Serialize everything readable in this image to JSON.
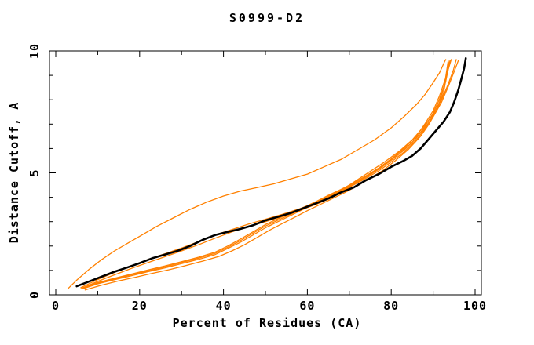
{
  "header": {
    "title": "S0999-D2"
  },
  "chart_data": {
    "type": "line",
    "title": "S0999-D2",
    "xlabel": "Percent of Residues (CA)",
    "ylabel": "Distance Cutoff, A",
    "xlim": [
      -1.5,
      101.5
    ],
    "ylim": [
      0,
      10
    ],
    "grid": false,
    "legend": "none",
    "x_ticks_major": [
      0,
      20,
      40,
      60,
      80,
      100
    ],
    "x_ticks_minor": [
      10,
      30,
      50,
      70,
      90
    ],
    "x_tick_labels": [
      "0",
      "20",
      "40",
      "60",
      "80",
      "100"
    ],
    "y_ticks_major": [
      0,
      5,
      10
    ],
    "y_ticks_minor": [
      1,
      2,
      3,
      4,
      6,
      7,
      8,
      9
    ],
    "y_tick_labels": [
      "0",
      "5",
      "10"
    ],
    "colors": {
      "orange_curves": "#ff8000",
      "black_curve": "#000000",
      "frame": "#000000"
    },
    "series": [
      {
        "name": "black-curve",
        "color": "#000000",
        "width": 2.6,
        "points": [
          [
            5,
            0.35
          ],
          [
            8,
            0.55
          ],
          [
            11,
            0.75
          ],
          [
            14,
            0.95
          ],
          [
            17,
            1.12
          ],
          [
            20,
            1.3
          ],
          [
            23,
            1.5
          ],
          [
            26,
            1.65
          ],
          [
            29,
            1.8
          ],
          [
            32,
            2.0
          ],
          [
            35,
            2.25
          ],
          [
            38,
            2.45
          ],
          [
            41,
            2.58
          ],
          [
            44,
            2.7
          ],
          [
            47,
            2.85
          ],
          [
            50,
            3.05
          ],
          [
            53,
            3.2
          ],
          [
            56,
            3.35
          ],
          [
            59,
            3.55
          ],
          [
            62,
            3.75
          ],
          [
            65,
            3.95
          ],
          [
            68,
            4.2
          ],
          [
            71,
            4.4
          ],
          [
            74,
            4.7
          ],
          [
            77,
            4.95
          ],
          [
            80,
            5.25
          ],
          [
            83,
            5.5
          ],
          [
            85,
            5.7
          ],
          [
            87,
            6.0
          ],
          [
            89,
            6.4
          ],
          [
            91,
            6.8
          ],
          [
            92.5,
            7.1
          ],
          [
            94,
            7.5
          ],
          [
            95,
            7.9
          ],
          [
            96,
            8.4
          ],
          [
            96.8,
            8.9
          ],
          [
            97.4,
            9.3
          ],
          [
            97.8,
            9.7
          ]
        ]
      },
      {
        "name": "orange-curve-1",
        "color": "#ff8000",
        "width": 1.3,
        "points": [
          [
            2.9,
            0.25
          ],
          [
            5,
            0.6
          ],
          [
            8,
            1.05
          ],
          [
            11,
            1.45
          ],
          [
            14,
            1.8
          ],
          [
            17,
            2.1
          ],
          [
            20,
            2.4
          ],
          [
            24,
            2.8
          ],
          [
            28,
            3.15
          ],
          [
            32,
            3.5
          ],
          [
            36,
            3.8
          ],
          [
            40,
            4.05
          ],
          [
            44,
            4.25
          ],
          [
            48,
            4.4
          ],
          [
            52,
            4.55
          ],
          [
            56,
            4.75
          ],
          [
            60,
            4.95
          ],
          [
            64,
            5.25
          ],
          [
            68,
            5.55
          ],
          [
            72,
            5.95
          ],
          [
            76,
            6.35
          ],
          [
            80,
            6.85
          ],
          [
            83,
            7.3
          ],
          [
            86,
            7.8
          ],
          [
            88,
            8.2
          ],
          [
            90,
            8.7
          ],
          [
            91.5,
            9.1
          ],
          [
            92.7,
            9.55
          ],
          [
            93,
            9.65
          ]
        ]
      },
      {
        "name": "orange-curve-2",
        "color": "#ff8000",
        "width": 1.3,
        "points": [
          [
            6,
            0.3
          ],
          [
            10,
            0.62
          ],
          [
            14,
            0.92
          ],
          [
            18,
            1.18
          ],
          [
            22,
            1.45
          ],
          [
            26,
            1.68
          ],
          [
            30,
            1.92
          ],
          [
            34,
            2.18
          ],
          [
            38,
            2.45
          ],
          [
            42,
            2.68
          ],
          [
            46,
            2.9
          ],
          [
            50,
            3.1
          ],
          [
            54,
            3.3
          ],
          [
            58,
            3.52
          ],
          [
            62,
            3.78
          ],
          [
            66,
            4.1
          ],
          [
            70,
            4.5
          ],
          [
            74,
            4.95
          ],
          [
            78,
            5.4
          ],
          [
            82,
            5.9
          ],
          [
            85,
            6.35
          ],
          [
            88,
            6.95
          ],
          [
            90,
            7.4
          ],
          [
            92,
            8.0
          ],
          [
            93.5,
            8.6
          ],
          [
            94.8,
            9.2
          ],
          [
            95.5,
            9.65
          ]
        ]
      },
      {
        "name": "orange-curve-3",
        "color": "#ff8000",
        "width": 1.3,
        "points": [
          [
            6,
            0.25
          ],
          [
            10,
            0.55
          ],
          [
            14,
            0.82
          ],
          [
            18,
            1.08
          ],
          [
            22,
            1.32
          ],
          [
            26,
            1.56
          ],
          [
            30,
            1.8
          ],
          [
            34,
            2.05
          ],
          [
            38,
            2.32
          ],
          [
            42,
            2.58
          ],
          [
            46,
            2.8
          ],
          [
            50,
            3.0
          ],
          [
            54,
            3.22
          ],
          [
            58,
            3.45
          ],
          [
            62,
            3.7
          ],
          [
            66,
            4.0
          ],
          [
            70,
            4.4
          ],
          [
            74,
            4.85
          ],
          [
            78,
            5.3
          ],
          [
            82,
            5.8
          ],
          [
            85,
            6.25
          ],
          [
            88,
            6.85
          ],
          [
            90,
            7.3
          ],
          [
            92,
            7.9
          ],
          [
            93.5,
            8.5
          ],
          [
            95,
            9.15
          ],
          [
            96,
            9.6
          ]
        ]
      },
      {
        "name": "orange-curve-4",
        "color": "#ff8000",
        "width": 1.3,
        "points": [
          [
            6.5,
            0.25
          ],
          [
            10,
            0.45
          ],
          [
            14,
            0.62
          ],
          [
            18,
            0.78
          ],
          [
            22,
            0.95
          ],
          [
            26,
            1.1
          ],
          [
            30,
            1.28
          ],
          [
            34,
            1.45
          ],
          [
            38,
            1.65
          ],
          [
            41,
            1.9
          ],
          [
            44,
            2.15
          ],
          [
            47,
            2.45
          ],
          [
            50,
            2.75
          ],
          [
            53,
            3.0
          ],
          [
            56,
            3.25
          ],
          [
            59,
            3.5
          ],
          [
            62,
            3.75
          ],
          [
            65,
            4.0
          ],
          [
            68,
            4.25
          ],
          [
            71,
            4.5
          ],
          [
            74,
            4.78
          ],
          [
            77,
            5.08
          ],
          [
            80,
            5.45
          ],
          [
            83,
            5.85
          ],
          [
            86,
            6.35
          ],
          [
            88,
            6.8
          ],
          [
            90,
            7.35
          ],
          [
            91.5,
            7.9
          ],
          [
            92.7,
            8.6
          ],
          [
            93.6,
            9.6
          ]
        ]
      },
      {
        "name": "orange-curve-5",
        "color": "#ff8000",
        "width": 1.3,
        "points": [
          [
            6.5,
            0.3
          ],
          [
            10,
            0.5
          ],
          [
            14,
            0.68
          ],
          [
            18,
            0.85
          ],
          [
            22,
            1.02
          ],
          [
            26,
            1.18
          ],
          [
            30,
            1.36
          ],
          [
            34,
            1.54
          ],
          [
            38,
            1.75
          ],
          [
            41,
            2.0
          ],
          [
            44,
            2.28
          ],
          [
            47,
            2.58
          ],
          [
            50,
            2.88
          ],
          [
            53,
            3.12
          ],
          [
            56,
            3.35
          ],
          [
            59,
            3.58
          ],
          [
            62,
            3.82
          ],
          [
            65,
            4.08
          ],
          [
            68,
            4.32
          ],
          [
            71,
            4.58
          ],
          [
            74,
            4.88
          ],
          [
            77,
            5.2
          ],
          [
            80,
            5.58
          ],
          [
            83,
            6.0
          ],
          [
            86,
            6.5
          ],
          [
            88,
            7.0
          ],
          [
            90,
            7.55
          ],
          [
            91.5,
            8.15
          ],
          [
            93,
            8.9
          ],
          [
            94.3,
            9.65
          ]
        ]
      },
      {
        "name": "orange-curve-6",
        "color": "#ff8000",
        "width": 1.3,
        "points": [
          [
            6.5,
            0.28
          ],
          [
            10,
            0.48
          ],
          [
            14,
            0.65
          ],
          [
            18,
            0.82
          ],
          [
            22,
            0.98
          ],
          [
            26,
            1.14
          ],
          [
            30,
            1.32
          ],
          [
            34,
            1.5
          ],
          [
            38,
            1.7
          ],
          [
            41,
            1.95
          ],
          [
            44,
            2.22
          ],
          [
            47,
            2.52
          ],
          [
            50,
            2.82
          ],
          [
            53,
            3.06
          ],
          [
            56,
            3.3
          ],
          [
            59,
            3.54
          ],
          [
            62,
            3.78
          ],
          [
            65,
            4.04
          ],
          [
            68,
            4.28
          ],
          [
            71,
            4.54
          ],
          [
            74,
            4.83
          ],
          [
            77,
            5.14
          ],
          [
            80,
            5.52
          ],
          [
            83,
            5.92
          ],
          [
            86,
            6.42
          ],
          [
            88,
            6.9
          ],
          [
            90,
            7.45
          ],
          [
            91.5,
            8.02
          ],
          [
            93,
            8.75
          ],
          [
            94,
            9.6
          ]
        ]
      },
      {
        "name": "orange-curve-7",
        "color": "#ff8000",
        "width": 1.3,
        "points": [
          [
            7,
            0.2
          ],
          [
            11,
            0.4
          ],
          [
            15,
            0.57
          ],
          [
            19,
            0.72
          ],
          [
            23,
            0.88
          ],
          [
            27,
            1.03
          ],
          [
            31,
            1.2
          ],
          [
            35,
            1.38
          ],
          [
            39,
            1.58
          ],
          [
            42,
            1.8
          ],
          [
            45,
            2.05
          ],
          [
            48,
            2.35
          ],
          [
            51,
            2.65
          ],
          [
            54,
            2.92
          ],
          [
            57,
            3.18
          ],
          [
            60,
            3.45
          ],
          [
            63,
            3.7
          ],
          [
            66,
            3.95
          ],
          [
            69,
            4.2
          ],
          [
            72,
            4.48
          ],
          [
            75,
            4.78
          ],
          [
            78,
            5.1
          ],
          [
            81,
            5.5
          ],
          [
            84,
            5.95
          ],
          [
            87,
            6.5
          ],
          [
            89,
            7.0
          ],
          [
            91,
            7.6
          ],
          [
            92.5,
            8.3
          ],
          [
            93.8,
            9.55
          ]
        ]
      }
    ]
  }
}
